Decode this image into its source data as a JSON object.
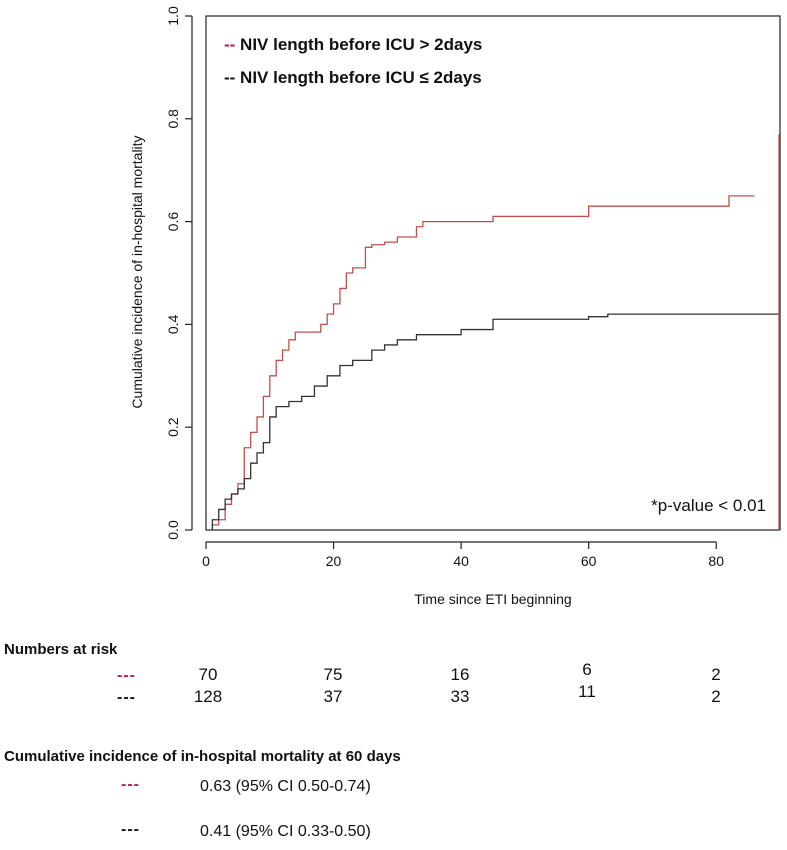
{
  "chart_data": {
    "type": "line",
    "step": true,
    "xlabel": "Time since ETI beginning",
    "ylabel": "Cumulative incidence of in-hospital mortality",
    "xlim": [
      0,
      90
    ],
    "ylim": [
      0,
      1.0
    ],
    "xticks": [
      "0",
      "20",
      "40",
      "60",
      "80"
    ],
    "yticks": [
      "0.0",
      "0.2",
      "0.4",
      "0.6",
      "0.8",
      "1.0"
    ],
    "grid": false,
    "legend_position": "top-left",
    "annotation": "*p-value < 0.01",
    "series": [
      {
        "name": "NIV length before ICU > 2days",
        "prefix": "--",
        "color": "#c0504d",
        "legend_color": "#c2185b",
        "x": [
          1,
          2,
          3,
          4,
          5,
          6,
          7,
          8,
          9,
          10,
          11,
          12,
          13,
          14,
          16,
          18,
          19,
          20,
          21,
          22,
          23,
          25,
          26,
          28,
          30,
          33,
          34,
          45,
          60,
          82,
          86
        ],
        "y": [
          0.01,
          0.02,
          0.05,
          0.07,
          0.09,
          0.16,
          0.19,
          0.22,
          0.26,
          0.3,
          0.33,
          0.35,
          0.37,
          0.385,
          0.385,
          0.4,
          0.42,
          0.44,
          0.47,
          0.5,
          0.51,
          0.55,
          0.555,
          0.56,
          0.57,
          0.59,
          0.6,
          0.61,
          0.63,
          0.65,
          0.65
        ]
      },
      {
        "name": "NIV length before ICU ≤ 2days",
        "prefix": "--",
        "color": "#333333",
        "legend_color": "#111111",
        "x": [
          1,
          2,
          3,
          4,
          5,
          6,
          7,
          8,
          9,
          10,
          11,
          13,
          15,
          17,
          19,
          21,
          23,
          26,
          28,
          30,
          33,
          40,
          45,
          60,
          63,
          90
        ],
        "y": [
          0.02,
          0.04,
          0.06,
          0.07,
          0.08,
          0.1,
          0.13,
          0.15,
          0.17,
          0.22,
          0.24,
          0.25,
          0.26,
          0.28,
          0.3,
          0.32,
          0.33,
          0.35,
          0.36,
          0.37,
          0.38,
          0.39,
          0.41,
          0.415,
          0.42,
          0.42
        ]
      }
    ]
  },
  "numbers_at_risk": {
    "title": "Numbers at risk",
    "rows": [
      {
        "dash": "---",
        "color": "#c2185b",
        "values": [
          "70",
          "75",
          "16",
          "6",
          "2"
        ]
      },
      {
        "dash": "---",
        "color": "#111111",
        "values": [
          "128",
          "37",
          "33",
          "11",
          "2"
        ]
      }
    ]
  },
  "cumulative_incidence_60": {
    "title": "Cumulative incidence of in-hospital mortality at 60 days",
    "rows": [
      {
        "dash": "---",
        "color": "#c2185b",
        "text": "0.63 (95% CI 0.50-0.74)"
      },
      {
        "dash": "---",
        "color": "#111111",
        "text": "0.41 (95% CI 0.33-0.50)"
      }
    ]
  }
}
